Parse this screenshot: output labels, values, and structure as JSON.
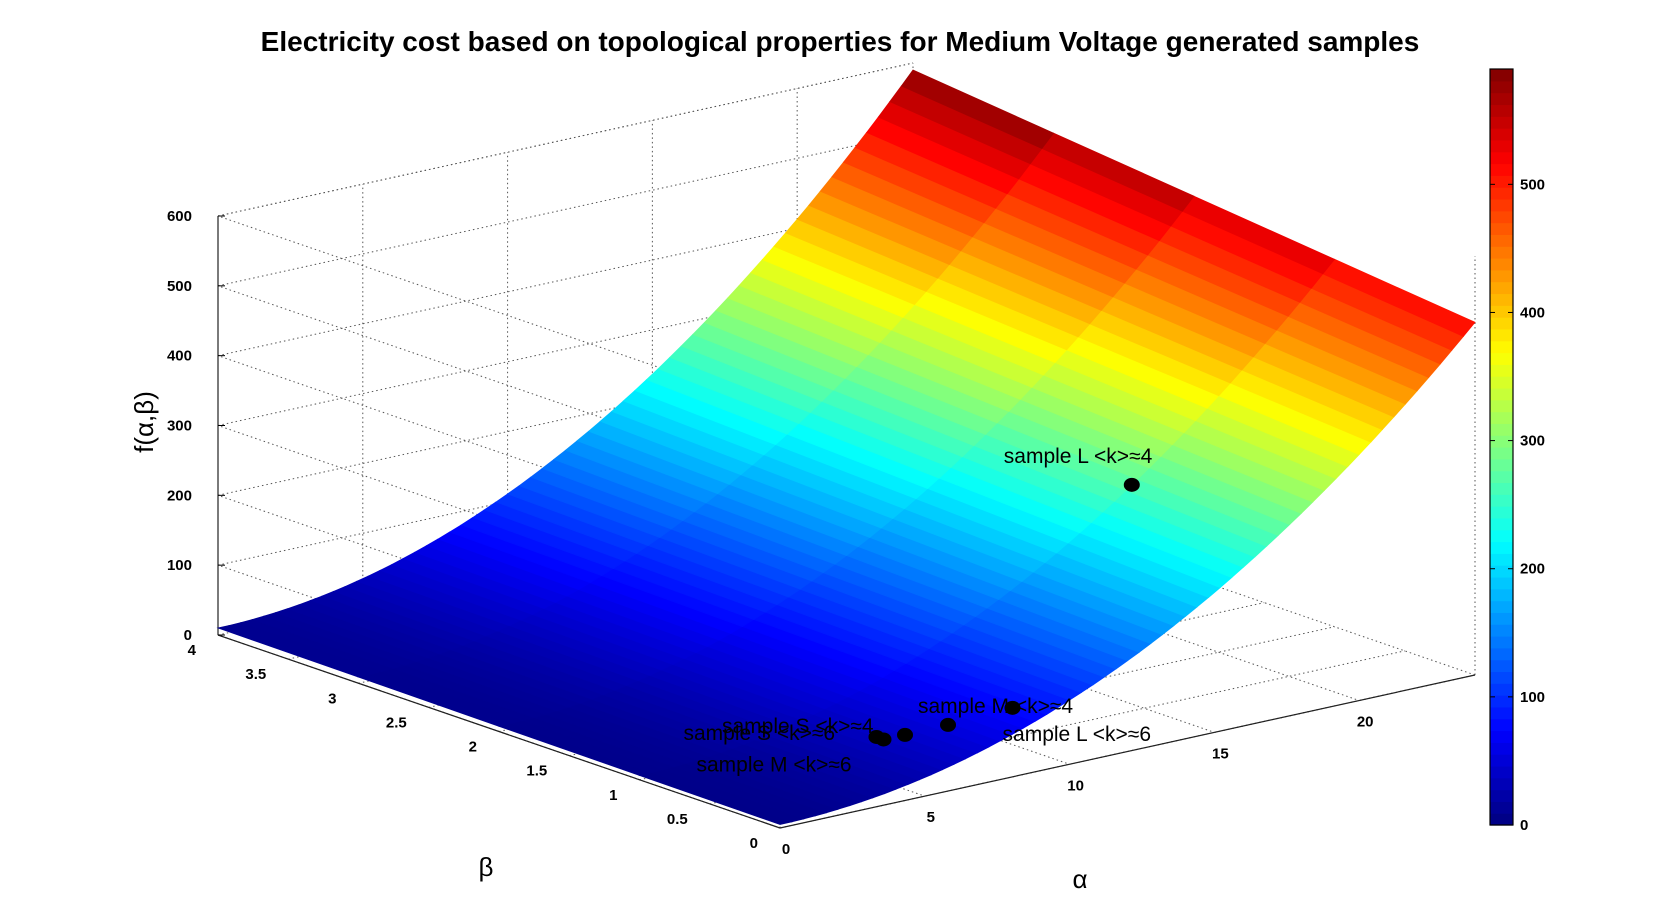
{
  "chart_data": {
    "type": "surface",
    "title": "Electricity cost based on topological properties for Medium Voltage generated samples",
    "xlabel": "α",
    "ylabel": "β",
    "zlabel": "f(α,β)",
    "xlim": [
      0,
      24
    ],
    "ylim": [
      0,
      4
    ],
    "zlim": [
      0,
      600
    ],
    "x_ticks": [
      0,
      5,
      10,
      15,
      20
    ],
    "y_ticks": [
      0,
      0.5,
      1,
      1.5,
      2,
      2.5,
      3,
      3.5,
      4
    ],
    "z_ticks": [
      0,
      100,
      200,
      300,
      400,
      500,
      600
    ],
    "colorbar": {
      "colormap": "jet",
      "range": [
        0,
        590
      ],
      "ticks": [
        0,
        100,
        200,
        300,
        400,
        500
      ]
    },
    "grid": true,
    "surface_corner_values": [
      {
        "alpha": 0,
        "beta": 0,
        "f": 5
      },
      {
        "alpha": 0,
        "beta": 4,
        "f": 10
      },
      {
        "alpha": 24,
        "beta": 0,
        "f": 505
      },
      {
        "alpha": 24,
        "beta": 4,
        "f": 590
      }
    ],
    "points": [
      {
        "label": "sample S <k>≈4",
        "alpha": 6.5,
        "beta": 0.45,
        "f": 32
      },
      {
        "label": "sample S <k>≈6",
        "alpha": 6.0,
        "beta": 0.55,
        "f": 28
      },
      {
        "label": "sample M <k>≈6",
        "alpha": 6.0,
        "beta": 0.5,
        "f": 27
      },
      {
        "label": "sample M <k>≈4",
        "alpha": 7.5,
        "beta": 0.35,
        "f": 40
      },
      {
        "label": "sample L <k>≈6",
        "alpha": 9.0,
        "beta": 0.2,
        "f": 52
      },
      {
        "label": "sample L <k>≈4",
        "alpha": 17.0,
        "beta": 1.0,
        "f": 230
      }
    ]
  }
}
